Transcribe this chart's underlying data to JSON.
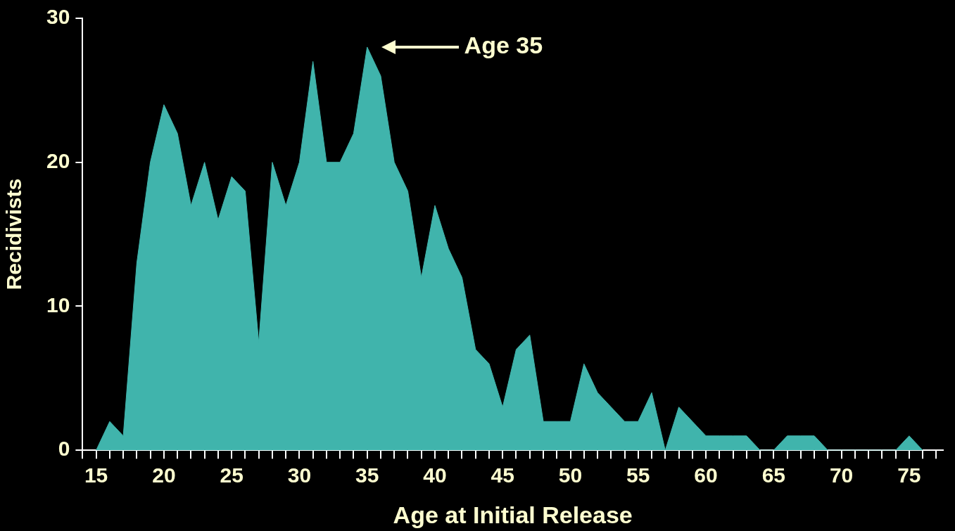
{
  "chart_data": {
    "type": "area",
    "xlabel": "Age at Initial Release",
    "ylabel": "Recidivists",
    "x": [
      15,
      16,
      17,
      18,
      19,
      20,
      21,
      22,
      23,
      24,
      25,
      26,
      27,
      28,
      29,
      30,
      31,
      32,
      33,
      34,
      35,
      36,
      37,
      38,
      39,
      40,
      41,
      42,
      43,
      44,
      45,
      46,
      47,
      48,
      49,
      50,
      51,
      52,
      53,
      54,
      55,
      56,
      57,
      58,
      59,
      60,
      61,
      62,
      63,
      64,
      65,
      66,
      67,
      68,
      69,
      70,
      71,
      72,
      73,
      74,
      75,
      76
    ],
    "series": [
      {
        "color": "#40b4ac",
        "values": [
          0,
          2,
          1,
          13,
          20,
          24,
          22,
          17,
          20,
          16,
          19,
          18,
          7.5,
          20,
          17,
          20,
          27,
          20,
          20,
          22,
          28,
          26,
          20,
          18,
          12,
          17,
          14,
          12,
          7,
          6,
          3,
          7,
          8,
          2,
          2,
          2,
          6,
          4,
          3,
          2,
          2,
          4,
          0,
          3,
          2,
          1,
          1,
          1,
          1,
          0,
          0,
          1,
          1,
          1,
          0,
          0,
          0,
          0,
          0,
          0,
          1,
          0
        ]
      }
    ],
    "xlim": [
      14,
      77.5
    ],
    "xticks": [
      {
        "value": 14,
        "label": null
      },
      15,
      {
        "value": 16,
        "label": null
      },
      {
        "value": 17,
        "label": null
      },
      {
        "value": 18,
        "label": null
      },
      {
        "value": 19,
        "label": null
      },
      20,
      {
        "value": 21,
        "label": null
      },
      {
        "value": 22,
        "label": null
      },
      {
        "value": 23,
        "label": null
      },
      {
        "value": 24,
        "label": null
      },
      25,
      {
        "value": 26,
        "label": null
      },
      {
        "value": 27,
        "label": null
      },
      {
        "value": 28,
        "label": null
      },
      {
        "value": 29,
        "label": null
      },
      30,
      {
        "value": 31,
        "label": null
      },
      {
        "value": 32,
        "label": null
      },
      {
        "value": 33,
        "label": null
      },
      {
        "value": 34,
        "label": null
      },
      35,
      {
        "value": 36,
        "label": null
      },
      {
        "value": 37,
        "label": null
      },
      {
        "value": 38,
        "label": null
      },
      {
        "value": 39,
        "label": null
      },
      40,
      {
        "value": 41,
        "label": null
      },
      {
        "value": 42,
        "label": null
      },
      {
        "value": 43,
        "label": null
      },
      {
        "value": 44,
        "label": null
      },
      45,
      {
        "value": 46,
        "label": null
      },
      {
        "value": 47,
        "label": null
      },
      {
        "value": 48,
        "label": null
      },
      {
        "value": 49,
        "label": null
      },
      50,
      {
        "value": 51,
        "label": null
      },
      {
        "value": 52,
        "label": null
      },
      {
        "value": 53,
        "label": null
      },
      {
        "value": 54,
        "label": null
      },
      55,
      {
        "value": 56,
        "label": null
      },
      {
        "value": 57,
        "label": null
      },
      {
        "value": 58,
        "label": null
      },
      {
        "value": 59,
        "label": null
      },
      60,
      {
        "value": 61,
        "label": null
      },
      {
        "value": 62,
        "label": null
      },
      {
        "value": 63,
        "label": null
      },
      {
        "value": 64,
        "label": null
      },
      65,
      {
        "value": 66,
        "label": null
      },
      {
        "value": 67,
        "label": null
      },
      {
        "value": 68,
        "label": null
      },
      {
        "value": 69,
        "label": null
      },
      70,
      {
        "value": 71,
        "label": null
      },
      {
        "value": 72,
        "label": null
      },
      {
        "value": 73,
        "label": null
      },
      {
        "value": 74,
        "label": null
      },
      75,
      {
        "value": 76,
        "label": null
      },
      {
        "value": 77,
        "label": null
      }
    ],
    "ylim": [
      0,
      30
    ],
    "yticks": [
      0,
      10,
      20,
      30
    ],
    "grid": false,
    "legend": false,
    "annotations": [
      "Age 35"
    ]
  }
}
